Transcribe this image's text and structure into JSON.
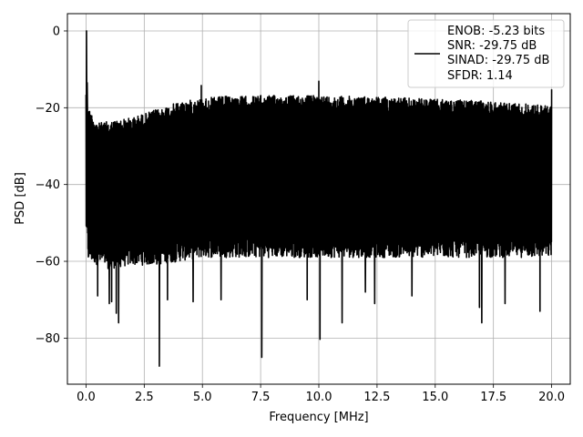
{
  "chart_data": {
    "type": "line",
    "xlabel": "Frequency [MHz]",
    "ylabel": "PSD [dB]",
    "xlim": [
      -0.8,
      20.8
    ],
    "ylim": [
      -92,
      4.5
    ],
    "x_ticks": [
      0.0,
      2.5,
      5.0,
      7.5,
      10.0,
      12.5,
      15.0,
      17.5,
      20.0
    ],
    "x_tick_labels": [
      "0.0",
      "2.5",
      "5.0",
      "7.5",
      "10.0",
      "12.5",
      "15.0",
      "17.5",
      "20.0"
    ],
    "y_ticks": [
      0,
      -20,
      -40,
      -60,
      -80
    ],
    "y_tick_labels": [
      "0",
      "−20",
      "−40",
      "−60",
      "−80"
    ],
    "grid": true,
    "legend_position": "top-right",
    "line_color": "#000000",
    "series": [
      {
        "name": "ENOB: -5.23 bits\nSNR: -29.75 dB\nSINAD: -29.75 dB\nSFDR: 1.14",
        "legend_lines": [
          "ENOB: -5.23 bits",
          "SNR: -29.75 dB",
          "SINAD: -29.75 dB",
          "SFDR: 1.14"
        ],
        "envelope": {
          "x": [
            0.0,
            0.1,
            0.5,
            1.0,
            2.0,
            3.0,
            4.0,
            5.0,
            6.0,
            7.0,
            7.5,
            8.0,
            9.0,
            10.0,
            11.0,
            12.0,
            13.0,
            14.0,
            15.0,
            16.0,
            17.0,
            18.0,
            19.0,
            20.0
          ],
          "upper": [
            -14,
            -20,
            -24,
            -23.5,
            -22.5,
            -20.5,
            -18.5,
            -17.5,
            -17.0,
            -17.0,
            -16.8,
            -16.8,
            -16.8,
            -16.8,
            -17.0,
            -17.0,
            -17.2,
            -17.5,
            -17.8,
            -18.0,
            -18.2,
            -18.5,
            -19.0,
            -19.5
          ],
          "lower": [
            -52,
            -60,
            -61,
            -62,
            -61,
            -61,
            -60,
            -59,
            -59,
            -59,
            -59,
            -59,
            -59,
            -59,
            -59,
            -59,
            -59,
            -59,
            -59,
            -59,
            -59,
            -59,
            -59,
            -59
          ]
        },
        "spikes": [
          {
            "x": 0.02,
            "y": 0.0
          },
          {
            "x": 0.05,
            "y": -13.5
          },
          {
            "x": 4.95,
            "y": -14.2
          },
          {
            "x": 10.0,
            "y": -13.1
          },
          {
            "x": 20.0,
            "y": -15.2
          },
          {
            "x": 0.5,
            "y": -69.0
          },
          {
            "x": 1.0,
            "y": -71.0
          },
          {
            "x": 1.1,
            "y": -70.5
          },
          {
            "x": 1.3,
            "y": -73.5
          },
          {
            "x": 1.4,
            "y": -76.0
          },
          {
            "x": 3.15,
            "y": -87.3
          },
          {
            "x": 3.5,
            "y": -70.0
          },
          {
            "x": 4.6,
            "y": -70.5
          },
          {
            "x": 5.8,
            "y": -70.0
          },
          {
            "x": 7.55,
            "y": -85.0
          },
          {
            "x": 9.5,
            "y": -70.0
          },
          {
            "x": 10.05,
            "y": -80.3
          },
          {
            "x": 11.0,
            "y": -76.0
          },
          {
            "x": 12.0,
            "y": -68.0
          },
          {
            "x": 12.4,
            "y": -71.0
          },
          {
            "x": 14.0,
            "y": -69.0
          },
          {
            "x": 16.9,
            "y": -72.0
          },
          {
            "x": 17.0,
            "y": -76.0
          },
          {
            "x": 18.0,
            "y": -71.0
          },
          {
            "x": 19.5,
            "y": -73.0
          }
        ]
      }
    ]
  }
}
